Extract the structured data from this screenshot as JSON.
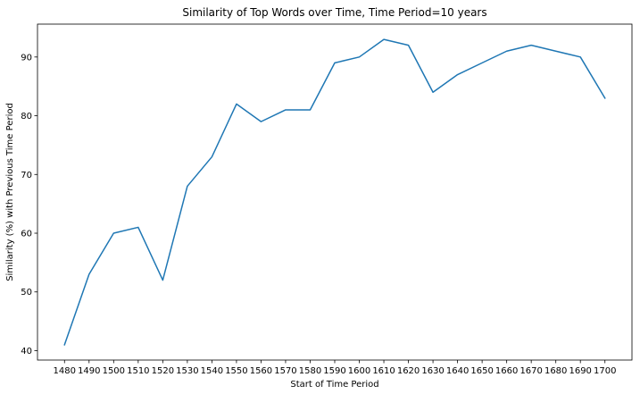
{
  "chart_data": {
    "type": "line",
    "title": "Similarity of Top Words over Time, Time Period=10 years",
    "xlabel": "Start of Time Period",
    "ylabel": "Similarity (%) with Previous Time Period",
    "x": [
      1480,
      1490,
      1500,
      1510,
      1520,
      1530,
      1540,
      1550,
      1560,
      1570,
      1580,
      1590,
      1600,
      1610,
      1620,
      1630,
      1640,
      1650,
      1660,
      1670,
      1680,
      1690,
      1700
    ],
    "series": [
      {
        "values": [
          41,
          53,
          60,
          61,
          52,
          68,
          73,
          82,
          79,
          81,
          81,
          89,
          90,
          93,
          92,
          84,
          87,
          89,
          91,
          92,
          91,
          90,
          83
        ]
      }
    ],
    "xlim": [
      1469,
      1711
    ],
    "ylim": [
      38.4,
      95.6
    ],
    "yticks": [
      40,
      50,
      60,
      70,
      80,
      90
    ],
    "grid": false,
    "legend": "none",
    "line_color": "#1f77b4"
  }
}
